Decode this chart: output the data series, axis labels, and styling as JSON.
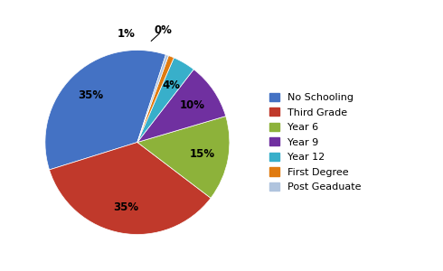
{
  "labels": [
    "No Schooling",
    "Third Grade",
    "Year 6",
    "Year 9",
    "Year 12",
    "First Degree",
    "Post Geaduate"
  ],
  "values": [
    35,
    35,
    15,
    10,
    4,
    1,
    0.5
  ],
  "display_pcts": [
    "35%",
    "35%",
    "15%",
    "10%",
    "4%",
    "1%",
    "0%"
  ],
  "colors": [
    "#4472C4",
    "#C0392B",
    "#8DB23A",
    "#7030A0",
    "#38AFCA",
    "#E07B10",
    "#B0C4DE"
  ],
  "background_color": "#FFFFFF",
  "title_fontsize": 10,
  "startangle": 72
}
